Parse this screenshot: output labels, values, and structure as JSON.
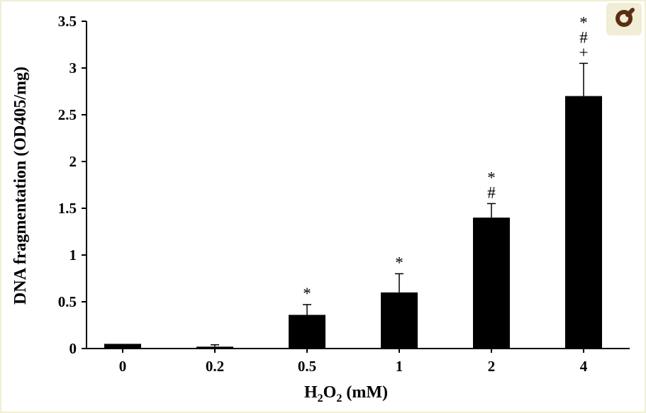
{
  "zoom_icon": "magnifier-icon",
  "colors": {
    "bar": "#000000",
    "axis": "#000000",
    "page": "#ffffff",
    "zoom_bg": "#f1edd6",
    "zoom_icon": "#5b2e12"
  },
  "chart_data": {
    "type": "bar",
    "xlabel": {
      "main": "H",
      "sub1": "2",
      "mid": "O",
      "sub2": "2",
      "rest": " (mM)"
    },
    "ylabel": "DNA fragmentation (OD405/mg)",
    "categories": [
      "0",
      "0.2",
      "0.5",
      "1",
      "2",
      "4"
    ],
    "values": [
      0.05,
      0.02,
      0.36,
      0.6,
      1.4,
      2.7
    ],
    "errors": [
      0.0,
      0.02,
      0.11,
      0.2,
      0.15,
      0.35
    ],
    "annotations": [
      [],
      [],
      [
        "*"
      ],
      [
        "*"
      ],
      [
        "*",
        "#"
      ],
      [
        "*",
        "#",
        "+"
      ]
    ],
    "ylim": [
      0,
      3.5
    ],
    "yticks": [
      "0",
      "0.5",
      "1",
      "1.5",
      "2",
      "2.5",
      "3",
      "3.5"
    ],
    "ytick_values": [
      0,
      0.5,
      1,
      1.5,
      2,
      2.5,
      3,
      3.5
    ],
    "grid": false,
    "legend": "none"
  }
}
